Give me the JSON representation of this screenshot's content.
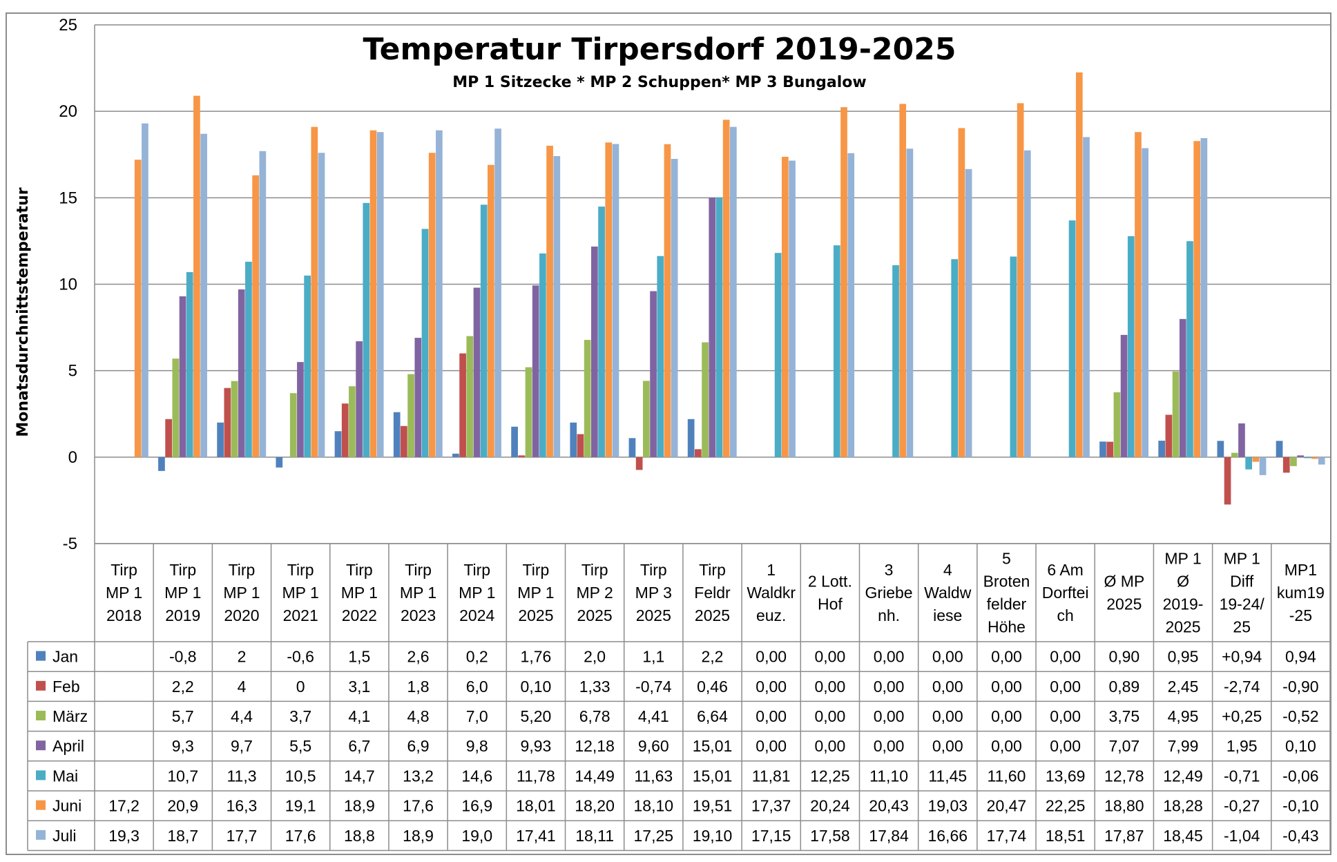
{
  "chart_data": {
    "type": "bar",
    "title": "Temperatur Tirpersdorf 2019-2025",
    "subtitle": "MP 1 Sitzecke * MP 2 Schuppen* MP 3 Bungalow",
    "ylabel": "Monatsdurchnittstemperatur",
    "ylim": [
      -5,
      25
    ],
    "yticks": [
      "25",
      "20",
      "15",
      "10",
      "5",
      "0",
      "-5"
    ],
    "ytick_values": [
      25,
      20,
      15,
      10,
      5,
      0,
      -5
    ],
    "grid": true,
    "legend": "left-of-table",
    "categories": [
      [
        "Tirp",
        "MP 1",
        "2018"
      ],
      [
        "Tirp",
        "MP 1",
        "2019"
      ],
      [
        "Tirp",
        "MP 1",
        "2020"
      ],
      [
        "Tirp",
        "MP 1",
        "2021"
      ],
      [
        "Tirp",
        "MP 1",
        "2022"
      ],
      [
        "Tirp",
        "MP 1",
        "2023"
      ],
      [
        "Tirp",
        "MP 1",
        "2024"
      ],
      [
        "Tirp",
        "MP 1",
        "2025"
      ],
      [
        "Tirp",
        "MP 2",
        "2025"
      ],
      [
        "Tirp",
        "MP 3",
        "2025"
      ],
      [
        "Tirp",
        "Feldr",
        "2025"
      ],
      [
        "1",
        "Waldkr",
        "euz."
      ],
      [
        "2 Lott.",
        "Hof"
      ],
      [
        "3",
        "Griebe",
        "nh."
      ],
      [
        "4",
        "Waldw",
        "iese"
      ],
      [
        "5",
        "Broten",
        "felder",
        "Höhe"
      ],
      [
        "6 Am",
        "Dorftei",
        "ch"
      ],
      [
        "Ø MP",
        "2025"
      ],
      [
        "MP 1",
        "Ø",
        "2019-",
        "2025"
      ],
      [
        "MP 1",
        "Diff",
        "19-24/",
        "25"
      ],
      [
        "MP1",
        "kum19",
        "-25"
      ]
    ],
    "series": [
      {
        "name": "Jan",
        "color": "#4f81bd",
        "values": [
          null,
          -0.8,
          2,
          -0.6,
          1.5,
          2.6,
          0.2,
          1.76,
          2.0,
          1.1,
          2.2,
          0.0,
          0.0,
          0.0,
          0.0,
          0.0,
          0.0,
          0.9,
          0.95,
          0.94,
          0.94
        ],
        "labels": [
          "",
          "-0,8",
          "2",
          "-0,6",
          "1,5",
          "2,6",
          "0,2",
          "1,76",
          "2,0",
          "1,1",
          "2,2",
          "0,00",
          "0,00",
          "0,00",
          "0,00",
          "0,00",
          "0,00",
          "0,90",
          "0,95",
          "+0,94",
          "0,94"
        ]
      },
      {
        "name": "Feb",
        "color": "#c0504d",
        "values": [
          null,
          2.2,
          4,
          0,
          3.1,
          1.8,
          6.0,
          0.1,
          1.33,
          -0.74,
          0.46,
          0.0,
          0.0,
          0.0,
          0.0,
          0.0,
          0.0,
          0.89,
          2.45,
          -2.74,
          -0.9
        ],
        "labels": [
          "",
          "2,2",
          "4",
          "0",
          "3,1",
          "1,8",
          "6,0",
          "0,10",
          "1,33",
          "-0,74",
          "0,46",
          "0,00",
          "0,00",
          "0,00",
          "0,00",
          "0,00",
          "0,00",
          "0,89",
          "2,45",
          "-2,74",
          "-0,90"
        ]
      },
      {
        "name": "März",
        "color": "#9bbb59",
        "values": [
          null,
          5.7,
          4.4,
          3.7,
          4.1,
          4.8,
          7.0,
          5.2,
          6.78,
          4.41,
          6.64,
          0.0,
          0.0,
          0.0,
          0.0,
          0.0,
          0.0,
          3.75,
          4.95,
          0.25,
          -0.52
        ],
        "labels": [
          "",
          "5,7",
          "4,4",
          "3,7",
          "4,1",
          "4,8",
          "7,0",
          "5,20",
          "6,78",
          "4,41",
          "6,64",
          "0,00",
          "0,00",
          "0,00",
          "0,00",
          "0,00",
          "0,00",
          "3,75",
          "4,95",
          "+0,25",
          "-0,52"
        ]
      },
      {
        "name": "April",
        "color": "#8064a2",
        "values": [
          null,
          9.3,
          9.7,
          5.5,
          6.7,
          6.9,
          9.8,
          9.93,
          12.18,
          9.6,
          15.01,
          0.0,
          0.0,
          0.0,
          0.0,
          0.0,
          0.0,
          7.07,
          7.99,
          1.95,
          0.1
        ],
        "labels": [
          "",
          "9,3",
          "9,7",
          "5,5",
          "6,7",
          "6,9",
          "9,8",
          "9,93",
          "12,18",
          "9,60",
          "15,01",
          "0,00",
          "0,00",
          "0,00",
          "0,00",
          "0,00",
          "0,00",
          "7,07",
          "7,99",
          "1,95",
          "0,10"
        ]
      },
      {
        "name": "Mai",
        "color": "#4bacc6",
        "values": [
          null,
          10.7,
          11.3,
          10.5,
          14.7,
          13.2,
          14.6,
          11.78,
          14.49,
          11.63,
          15.01,
          11.81,
          12.25,
          11.1,
          11.45,
          11.6,
          13.69,
          12.78,
          12.49,
          -0.71,
          -0.06
        ],
        "labels": [
          "",
          "10,7",
          "11,3",
          "10,5",
          "14,7",
          "13,2",
          "14,6",
          "11,78",
          "14,49",
          "11,63",
          "15,01",
          "11,81",
          "12,25",
          "11,10",
          "11,45",
          "11,60",
          "13,69",
          "12,78",
          "12,49",
          "-0,71",
          "-0,06"
        ]
      },
      {
        "name": "Juni",
        "color": "#f79646",
        "values": [
          17.2,
          20.9,
          16.3,
          19.1,
          18.9,
          17.6,
          16.9,
          18.01,
          18.2,
          18.1,
          19.51,
          17.37,
          20.24,
          20.43,
          19.03,
          20.47,
          22.25,
          18.8,
          18.28,
          -0.27,
          -0.1
        ],
        "labels": [
          "17,2",
          "20,9",
          "16,3",
          "19,1",
          "18,9",
          "17,6",
          "16,9",
          "18,01",
          "18,20",
          "18,10",
          "19,51",
          "17,37",
          "20,24",
          "20,43",
          "19,03",
          "20,47",
          "22,25",
          "18,80",
          "18,28",
          "-0,27",
          "-0,10"
        ]
      },
      {
        "name": "Juli",
        "color": "#95b3d7",
        "values": [
          19.3,
          18.7,
          17.7,
          17.6,
          18.8,
          18.9,
          19.0,
          17.41,
          18.11,
          17.25,
          19.1,
          17.15,
          17.58,
          17.84,
          16.66,
          17.74,
          18.51,
          17.87,
          18.45,
          -1.04,
          -0.43
        ],
        "labels": [
          "19,3",
          "18,7",
          "17,7",
          "17,6",
          "18,8",
          "18,9",
          "19,0",
          "17,41",
          "18,11",
          "17,25",
          "19,10",
          "17,15",
          "17,58",
          "17,84",
          "16,66",
          "17,74",
          "18,51",
          "17,87",
          "18,45",
          "-1,04",
          "-0,43"
        ]
      }
    ]
  }
}
